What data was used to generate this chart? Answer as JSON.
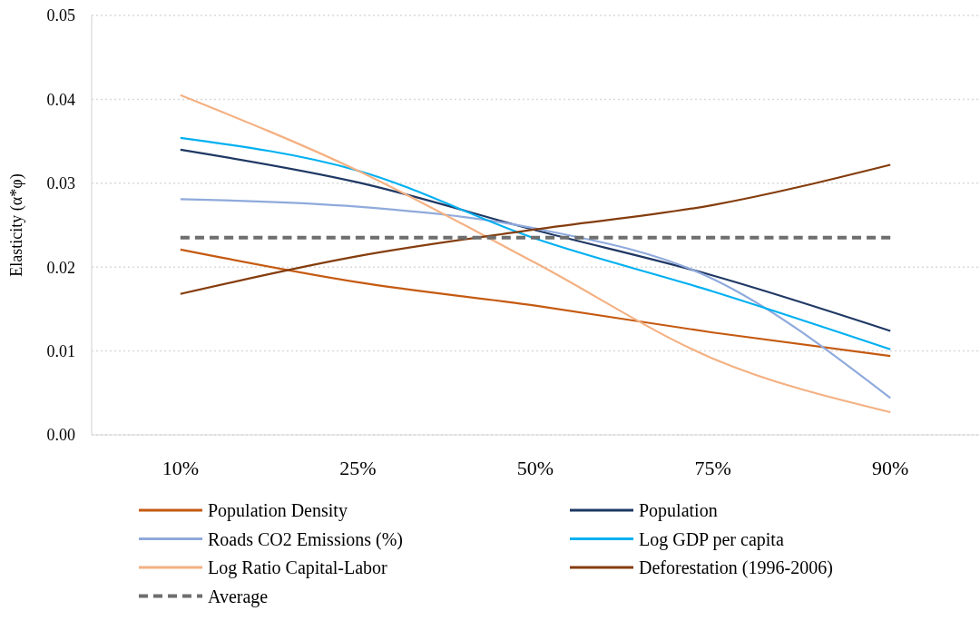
{
  "chart_data": {
    "type": "line",
    "ylabel": "Elasticity (α*φ)",
    "categories": [
      "10%",
      "25%",
      "50%",
      "75%",
      "90%"
    ],
    "series": [
      {
        "name": "Population Density",
        "color": "#c55a11",
        "values": [
          0.0221,
          0.0182,
          0.0154,
          0.0122,
          0.0094
        ]
      },
      {
        "name": "Population",
        "color": "#1f3864",
        "values": [
          0.034,
          0.0301,
          0.0244,
          0.019,
          0.0124
        ]
      },
      {
        "name": "Roads CO2 Emissions (%)",
        "color": "#8faadc",
        "values": [
          0.0281,
          0.0272,
          0.0246,
          0.0186,
          0.0044
        ]
      },
      {
        "name": "Log GDP per capita",
        "color": "#00b0f0",
        "values": [
          0.0354,
          0.0315,
          0.0234,
          0.0171,
          0.0102
        ]
      },
      {
        "name": "Log Ratio Capital-Labor",
        "color": "#f4b183",
        "values": [
          0.0405,
          0.0315,
          0.0205,
          0.0091,
          0.0027
        ]
      },
      {
        "name": "Deforestation (1996-2006)",
        "color": "#843c0c",
        "values": [
          0.0168,
          0.0213,
          0.0245,
          0.0274,
          0.0322
        ]
      },
      {
        "name": "Average",
        "color": "#6e6e6e",
        "line_style": "dashed",
        "values": [
          0.0235,
          0.0235,
          0.0235,
          0.0235,
          0.0235
        ]
      }
    ],
    "ylim": [
      0,
      0.05
    ],
    "yticks": [
      {
        "value": 0,
        "label": "0.00"
      },
      {
        "value": 0.01,
        "label": "0.01"
      },
      {
        "value": 0.02,
        "label": "0.02"
      },
      {
        "value": 0.03,
        "label": "0.03"
      },
      {
        "value": 0.04,
        "label": "0.04"
      },
      {
        "value": 0.05,
        "label": "0.05"
      }
    ],
    "grid": "y",
    "legend": "bottom",
    "marker": "none"
  }
}
